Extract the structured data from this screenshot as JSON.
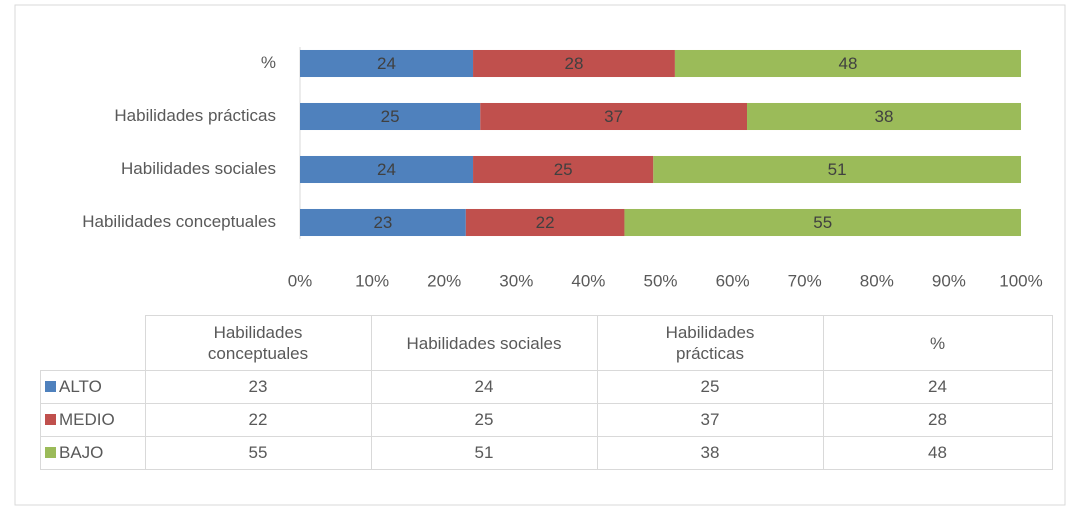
{
  "chart_data": {
    "type": "bar",
    "orientation": "horizontal",
    "stacked": true,
    "categories": [
      "Habilidades conceptuales",
      "Habilidades sociales",
      "Habilidades prácticas",
      "%"
    ],
    "series": [
      {
        "name": "ALTO",
        "color": "#4f81bd",
        "values": [
          23,
          24,
          25,
          24
        ]
      },
      {
        "name": "MEDIO",
        "color": "#c0504d",
        "values": [
          22,
          25,
          37,
          28
        ]
      },
      {
        "name": "BAJO",
        "color": "#9bbb59",
        "values": [
          55,
          51,
          38,
          48
        ]
      }
    ],
    "xlim": [
      0,
      100
    ],
    "xticks": [
      {
        "value": 0,
        "label": "0%"
      },
      {
        "value": 10,
        "label": "10%"
      },
      {
        "value": 20,
        "label": "20%"
      },
      {
        "value": 30,
        "label": "30%"
      },
      {
        "value": 40,
        "label": "40%"
      },
      {
        "value": 50,
        "label": "50%"
      },
      {
        "value": 60,
        "label": "60%"
      },
      {
        "value": 70,
        "label": "70%"
      },
      {
        "value": 80,
        "label": "80%"
      },
      {
        "value": 90,
        "label": "90%"
      },
      {
        "value": 100,
        "label": "100%"
      }
    ],
    "data_labels": true,
    "data_table": true
  }
}
